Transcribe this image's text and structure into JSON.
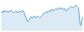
{
  "chart_data": {
    "type": "line",
    "values": [
      50,
      40,
      55,
      45,
      60,
      50,
      45,
      55,
      50,
      45,
      55,
      50,
      60,
      55,
      50,
      40,
      45,
      50,
      55,
      45,
      40,
      50,
      55,
      45,
      50,
      55,
      60,
      50,
      35,
      20,
      10,
      -10,
      -30,
      -20,
      -10,
      0,
      10,
      5,
      0,
      10,
      15,
      5,
      0,
      10,
      15,
      10,
      5,
      0,
      5,
      10,
      20,
      30,
      40,
      35,
      45,
      50,
      40,
      50,
      55,
      60,
      50,
      60,
      70,
      65,
      55,
      65,
      70,
      75,
      65,
      70,
      75,
      80,
      70,
      75,
      80,
      70,
      65,
      75,
      65,
      55,
      60,
      70,
      75,
      80,
      85,
      90,
      85,
      80,
      85,
      90,
      95,
      100,
      90,
      85,
      75,
      20,
      -50,
      -60,
      -30,
      10
    ],
    "color": "#4d94c9",
    "xlim": [
      0,
      99
    ],
    "ylim": [
      -100,
      130
    ],
    "grid": false,
    "tick_labels": false
  }
}
